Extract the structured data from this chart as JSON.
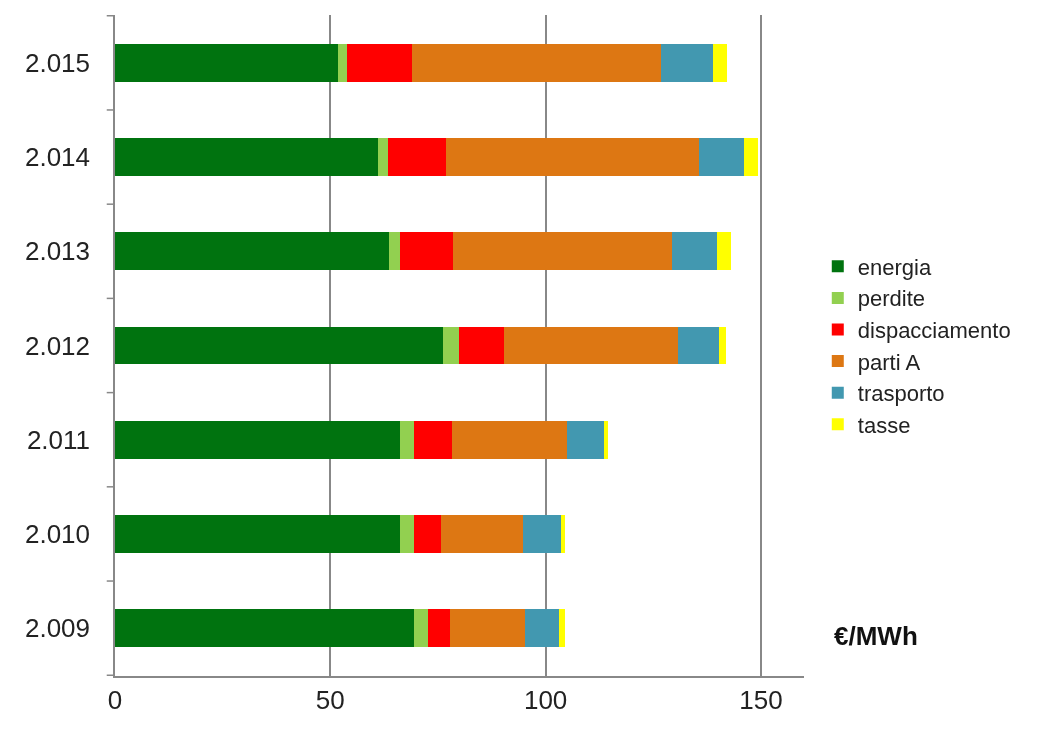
{
  "chart_data": {
    "type": "bar",
    "orientation": "horizontal",
    "stacked": true,
    "categories": [
      "2.015",
      "2.014",
      "2.013",
      "2.012",
      "2.011",
      "2.010",
      "2.009"
    ],
    "series": [
      {
        "name": "energia",
        "color": "#00730f",
        "values": [
          51.8,
          61.1,
          63.6,
          76.1,
          66.1,
          66.1,
          69.4
        ]
      },
      {
        "name": "perdite",
        "color": "#92d050",
        "values": [
          2.0,
          2.4,
          2.5,
          3.7,
          3.3,
          3.3,
          3.3
        ]
      },
      {
        "name": "dispacciamento",
        "color": "#ff0000",
        "values": [
          15.1,
          13.4,
          12.5,
          10.5,
          8.8,
          6.3,
          5.1
        ]
      },
      {
        "name": "parti A",
        "color": "#dd7713",
        "values": [
          57.9,
          58.7,
          50.8,
          40.4,
          26.7,
          19.1,
          17.4
        ]
      },
      {
        "name": "trasporto",
        "color": "#4298b0",
        "values": [
          12.1,
          10.4,
          10.4,
          9.5,
          8.7,
          8.8,
          8.0
        ]
      },
      {
        "name": "tasse",
        "color": "#ffff00",
        "values": [
          3.3,
          3.3,
          3.3,
          1.7,
          0.8,
          0.8,
          1.2
        ]
      }
    ],
    "xlim": [
      0,
      160
    ],
    "xticks": [
      0,
      50,
      100,
      150
    ],
    "grid": "x",
    "legend": "right",
    "annotations": [
      "€/MWh"
    ]
  }
}
